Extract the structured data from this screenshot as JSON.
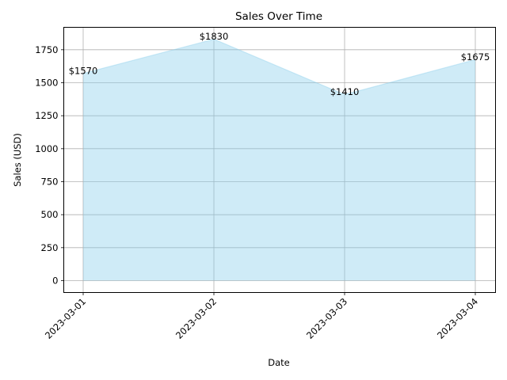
{
  "chart_data": {
    "type": "area",
    "title": "Sales Over Time",
    "xlabel": "Date",
    "ylabel": "Sales (USD)",
    "x": [
      "2023-03-01",
      "2023-03-02",
      "2023-03-03",
      "2023-03-04"
    ],
    "values": [
      1570,
      1830,
      1410,
      1675
    ],
    "data_labels": [
      "$1570",
      "$1830",
      "$1410",
      "$1675"
    ],
    "yticks": [
      0,
      250,
      500,
      750,
      1000,
      1250,
      1500,
      1750
    ],
    "ylim": [
      -90,
      1920
    ],
    "grid": true,
    "legend": "none",
    "colors": {
      "fill": "#87ceeb",
      "grid": "#b0b0b0",
      "axis": "#000000"
    }
  }
}
